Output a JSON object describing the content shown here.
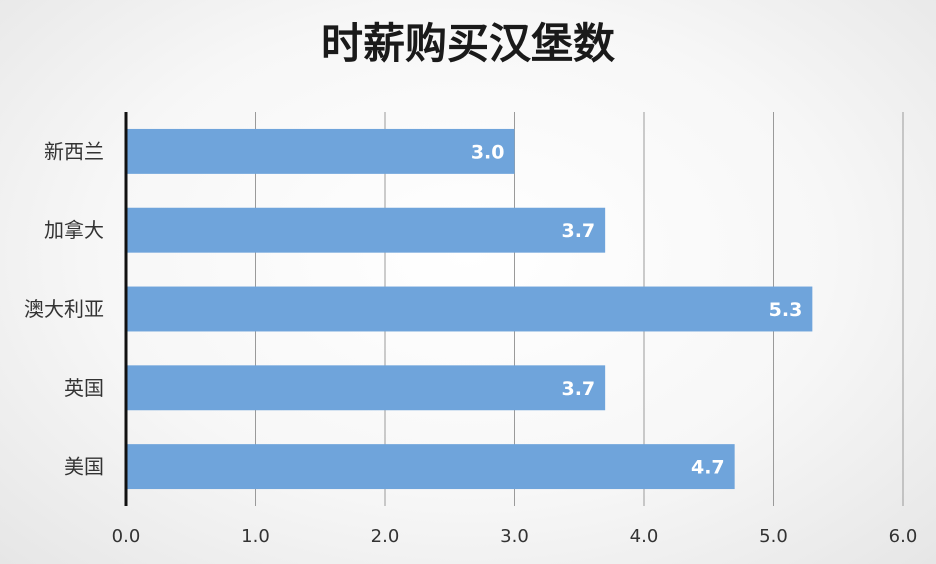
{
  "chart_data": {
    "type": "bar",
    "orientation": "horizontal",
    "title": "时薪购买汉堡数",
    "categories": [
      "新西兰",
      "加拿大",
      "澳大利亚",
      "英国",
      "美国"
    ],
    "values": [
      3.0,
      3.7,
      5.3,
      3.7,
      4.7
    ],
    "value_labels": [
      "3.0",
      "3.7",
      "5.3",
      "3.7",
      "4.7"
    ],
    "xlim": [
      0,
      6
    ],
    "x_ticks": [
      "0.0",
      "1.0",
      "2.0",
      "3.0",
      "4.0",
      "5.0",
      "6.0"
    ],
    "xlabel": "",
    "ylabel": "",
    "grid": "vertical",
    "legend": "none",
    "bar_color": "#6fa4db"
  }
}
